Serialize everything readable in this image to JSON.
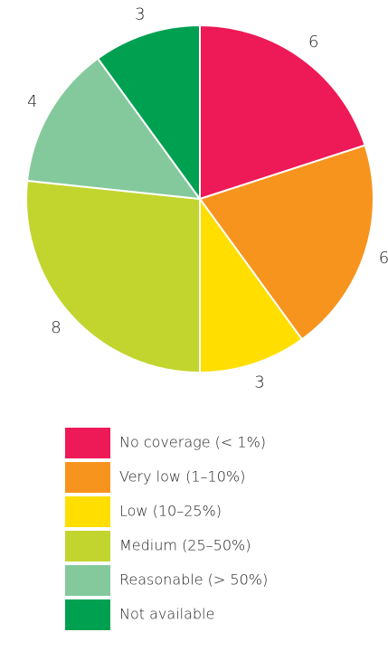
{
  "chart_data": {
    "type": "pie",
    "categories": [
      "No coverage (< 1%)",
      "Very low (1–10%)",
      "Low (10–25%)",
      "Medium (25–50%)",
      "Reasonable (> 50%)",
      "Not available"
    ],
    "values": [
      6,
      6,
      3,
      8,
      4,
      3
    ],
    "colors": [
      "#ee1957",
      "#f7941d",
      "#ffde00",
      "#c2d52f",
      "#84c99b",
      "#00a051"
    ],
    "legend": "bottom"
  }
}
